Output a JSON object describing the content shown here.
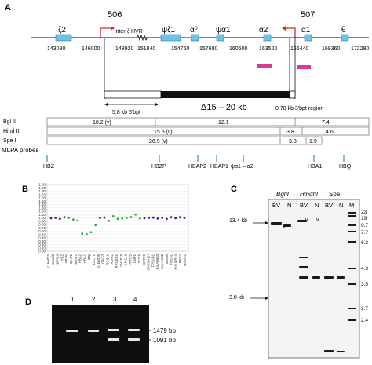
{
  "panels": {
    "A": "A",
    "B": "B",
    "C": "C",
    "D": "D"
  },
  "panelA": {
    "primer_left": "506",
    "primer_right": "507",
    "genes": [
      "ζ2",
      "ψζ1",
      "α⁰",
      "ψα1",
      "α2",
      "α1",
      "θ"
    ],
    "hvr": "inter-ζ HVR",
    "coords": [
      "143080",
      "146000",
      "148920",
      "151840",
      "154760",
      "157680",
      "160600",
      "163520",
      "166440",
      "169360",
      "172280"
    ],
    "bpt5": "5.8 kb 5'bpt",
    "deletion": "Δ15 – 20 kb",
    "bpt3": "0.78 kb 3'bpt region",
    "enzymes": [
      "Bgl II",
      "Hind III",
      "Spe I"
    ],
    "frag_bgl": [
      "10.2 (v)",
      "12.1",
      "7.4"
    ],
    "frag_hind": [
      "15.5 (v)",
      "3.8",
      "4.6"
    ],
    "frag_spe": [
      "26.9 (v)",
      "3.8",
      "1.9"
    ],
    "mlpa_title": "MLPA probes",
    "mlpa_probes": [
      "HBZ",
      "HBZP",
      "HBAP2",
      "HBAP1",
      "ψα1 – α2",
      "HBA1",
      "HBQ"
    ]
  },
  "panelB": {
    "yticks": [
      "2.00",
      "1.90",
      "1.80",
      "1.70",
      "1.60",
      "1.50",
      "1.40",
      "1.30",
      "1.20",
      "1.10",
      "1.00",
      "0.90",
      "0.80",
      "0.70",
      "0.60",
      "0.50",
      "0.40",
      "0.30",
      "0.20",
      "0.10",
      "0.00"
    ],
    "xlabels": [
      "c16orf33",
      "c16orf8",
      "NPRL3",
      "HBZ",
      "HBZP",
      "HBAP2",
      "HBAP1",
      "HBA2",
      "HBA1",
      "HBQ",
      "LUC7L",
      "c16orf35",
      "ITFG3",
      "RGS11",
      "AXIN1",
      "RPUSD1",
      "CHTF18",
      "GNG13",
      "PRR25",
      "LMF1",
      "SOX8",
      "SSTR5",
      "CACNA1H",
      "TPSAB1",
      "KIAA0683",
      "KIAA1930",
      "MSLN",
      "RPL3L",
      "NDUFB10",
      "RPS2",
      "NOXO1"
    ],
    "blue_points": [
      0.99,
      1.0,
      0.97,
      1.02,
      1.0,
      1.01,
      0.99,
      1.0,
      1.01,
      0.98,
      1.0,
      0.97,
      1.02,
      0.99,
      1.02,
      1.0
    ],
    "green_points": [
      1.0,
      0.95,
      0.92,
      0.53,
      0.51,
      0.57,
      0.78,
      0.91,
      1.05,
      0.97,
      0.98,
      1.0,
      1.02,
      1.1,
      0.98
    ]
  },
  "panelC": {
    "enzymes": [
      "BglII",
      "HindIII",
      "SpeI"
    ],
    "lanes": [
      "BV",
      "N",
      "BV",
      "N",
      "BV",
      "N",
      "M"
    ],
    "left_marks": [
      "13.4 kb",
      "3.0 kb"
    ],
    "markers": [
      "23",
      "19",
      "9.7",
      "7.7",
      "6.2",
      "4.3",
      "3.5",
      "2.7",
      "2.4"
    ],
    "v_marks": [
      "v",
      "v",
      "v"
    ]
  },
  "panelD": {
    "lanes": [
      "1",
      "2",
      "3",
      "4"
    ],
    "bands": [
      "1479 bp",
      "1091 bp"
    ]
  },
  "colors": {
    "gene_box": "#6cc3e8",
    "probe_box": "#d63b8f",
    "deletion_bar": "#111111",
    "primer_arrow": "#d72b1d",
    "mlpa_tick": "#2aa857",
    "mlpa_tick_alt": "#4a6ab8",
    "blue_points": "#1e2b8c",
    "green_points": "#2faa3c",
    "gel_bg": "#0f0f0f"
  }
}
